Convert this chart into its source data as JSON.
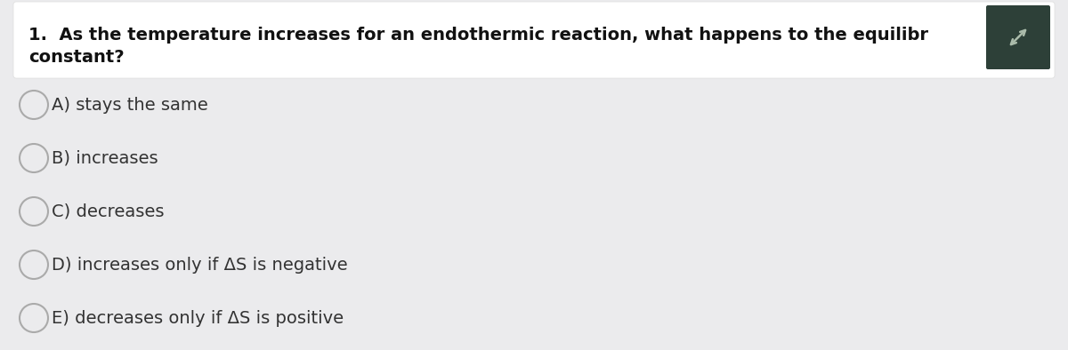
{
  "background_color": "#ebebed",
  "question_box_color": "#ffffff",
  "question_text_line1": "1.  As the temperature increases for an endothermic reaction, what happens to the equilibr",
  "question_text_line2": "constant?",
  "choices": [
    "A) stays the same",
    "B) increases",
    "C) decreases",
    "D) increases only if ΔS is negative",
    "E) decreases only if ΔS is positive"
  ],
  "choice_text_color": "#333333",
  "question_text_color": "#111111",
  "circle_edge_color": "#aaaaaa",
  "circle_face_color": "#ebebed",
  "icon_box_color": "#2d4038",
  "font_size_question": 14,
  "font_size_choices": 14
}
